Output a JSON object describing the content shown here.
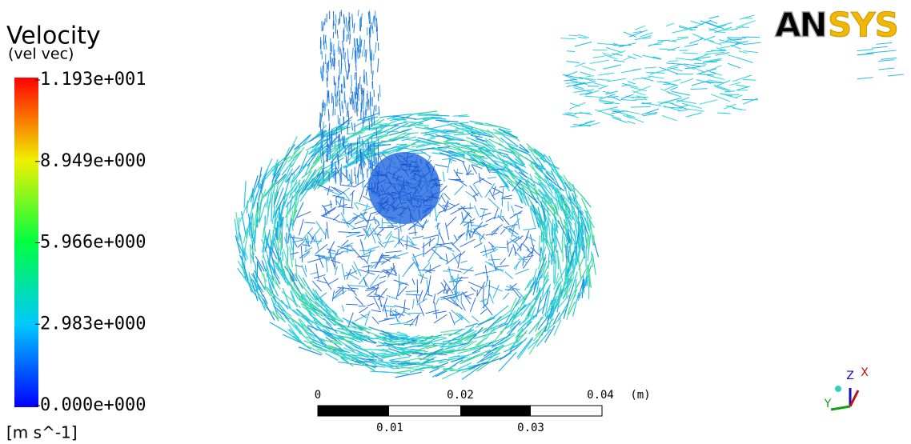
{
  "legend": {
    "title": "Velocity",
    "subtitle": "(vel vec)",
    "ticks": [
      "1.193e+001",
      "8.949e+000",
      "5.966e+000",
      "2.983e+000",
      "0.000e+000"
    ],
    "units": "[m s^-1]"
  },
  "scale_bar": {
    "top_labels": [
      "0",
      "0.02",
      "0.04"
    ],
    "unit": "(m)",
    "bottom_labels": [
      "0.01",
      "0.03"
    ]
  },
  "logo": {
    "part1": "AN",
    "part2": "SYS"
  },
  "triad": {
    "z": "Z",
    "x": "X",
    "y": "Y"
  }
}
